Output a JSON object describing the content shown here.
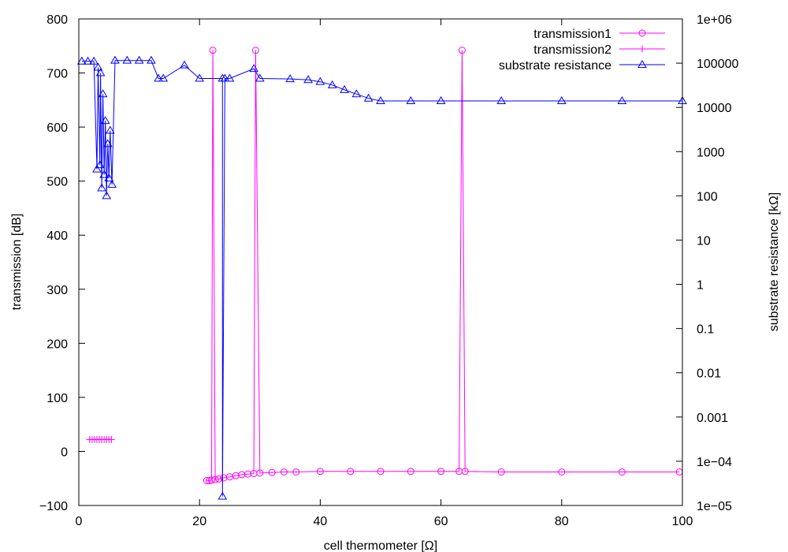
{
  "chart_data": {
    "type": "line",
    "xlabel": "cell thermometer [Ω]",
    "ylabel": "transmission [dB]",
    "y2label": "substrate resistance [kΩ]",
    "xlim": [
      0,
      100
    ],
    "ylim": [
      -100,
      800
    ],
    "y2lim": [
      1e-05,
      1000000
    ],
    "y2scale": "log",
    "grid": false,
    "legend_position": "top-right",
    "x_ticks": [
      "0",
      "20",
      "40",
      "60",
      "80",
      "100"
    ],
    "y_ticks": [
      "−100",
      "0",
      "100",
      "200",
      "300",
      "400",
      "500",
      "600",
      "700",
      "800"
    ],
    "y2_ticks": [
      "1e−05",
      "1e−04",
      "0.001",
      "0.01",
      "0.1",
      "1",
      "10",
      "100",
      "1000",
      "10000",
      "100000",
      "1e+06"
    ],
    "colors": {
      "transmission1": "#ff00ff",
      "transmission2": "#ff00ff",
      "substrate": "#0000ff"
    },
    "series": [
      {
        "name": "transmission1",
        "axis": "left",
        "marker": "circle",
        "x": [
          21.2,
          21.6,
          22.0,
          22.2,
          22.6,
          23.2,
          24.0,
          25.0,
          26.0,
          27.0,
          28.0,
          29.0,
          29.3,
          30.0,
          32.0,
          34.0,
          36.0,
          40.0,
          45.0,
          50.0,
          55.0,
          60.0,
          63.0,
          63.5,
          64.0,
          70.0,
          80.0,
          90.0,
          99.5
        ],
        "y": [
          -54,
          -54,
          -53,
          742,
          -52,
          -51,
          -49,
          -47,
          -45,
          -43,
          -42,
          -41,
          742,
          -40,
          -39,
          -38,
          -38,
          -37,
          -37,
          -37,
          -37,
          -37,
          -37,
          742,
          -37,
          -38,
          -38,
          -38,
          -38
        ]
      },
      {
        "name": "transmission2",
        "axis": "left",
        "marker": "plus",
        "x": [
          1.8,
          2.2,
          2.6,
          3.0,
          3.4,
          3.8,
          4.2,
          4.6,
          5.0,
          5.4
        ],
        "y": [
          22,
          22,
          22,
          22,
          22,
          22,
          22,
          22,
          22,
          22
        ]
      },
      {
        "name": "substrate resistance",
        "axis": "right",
        "marker": "triangle",
        "x": [
          0.5,
          1.5,
          2.5,
          3.0,
          3.2,
          3.5,
          3.6,
          3.8,
          4.0,
          4.2,
          4.4,
          4.6,
          4.8,
          5.0,
          5.2,
          5.5,
          6.0,
          8.0,
          10.0,
          12.0,
          13.2,
          14.0,
          17.5,
          20.0,
          23.8,
          23.8,
          24.2,
          25.0,
          29.0,
          30.0,
          35.0,
          38.0,
          40.0,
          42.0,
          44.0,
          46.0,
          48.0,
          50.0,
          55.0,
          60.0,
          70.0,
          80.0,
          90.0,
          100.0
        ],
        "y": [
          110000,
          110000,
          110000,
          400,
          80000,
          500,
          60000,
          150,
          20000,
          300,
          5000,
          100,
          1500,
          250,
          3000,
          180,
          115000,
          115000,
          115000,
          115000,
          45000,
          45000,
          90000,
          45000,
          45000,
          1.6e-05,
          45000,
          45000,
          75000,
          45000,
          44000,
          42000,
          38000,
          32000,
          25000,
          20000,
          16000,
          14000,
          14000,
          14000,
          14000,
          14000,
          14000,
          14000
        ]
      }
    ]
  }
}
